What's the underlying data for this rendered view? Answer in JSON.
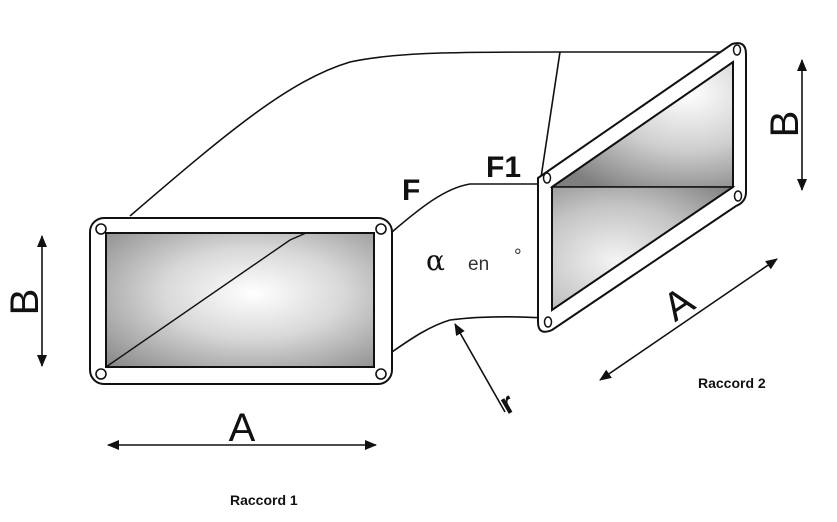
{
  "labels": {
    "a_left": "A",
    "a_right": "A",
    "b_left": "B",
    "b_right": "B",
    "f": "F",
    "f1": "F1",
    "alpha": "α",
    "alpha_unit": "en",
    "degree": "°",
    "radius": "r",
    "raccord_1": "Raccord 1",
    "raccord_2": "Raccord 2"
  },
  "colors": {
    "stroke": "#111111",
    "fill_light": "#ffffff",
    "fill_dark": "#8f8f8f"
  }
}
